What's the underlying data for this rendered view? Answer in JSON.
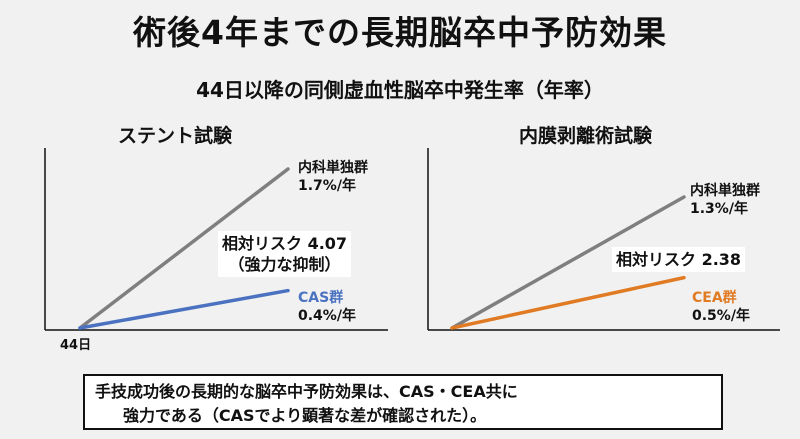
{
  "title": "術後4年までの長期脳卒中予防効果",
  "subtitle": "44日以降の同側虚血性脳卒中発生率（年率）",
  "chart_data": [
    {
      "type": "line",
      "title": "ステント試験",
      "x": [
        "44日"
      ],
      "series": [
        {
          "name": "内科単独群",
          "value": 1.7,
          "label": "1.7%/年",
          "color": "#7f7f7f"
        },
        {
          "name": "CAS群",
          "value": 0.4,
          "label": "0.4%/年",
          "color": "#4a72c0"
        }
      ],
      "annotation": [
        "相対リスク 4.07",
        "（強力な抑制）"
      ]
    },
    {
      "type": "line",
      "title": "内膜剥離術試験",
      "series": [
        {
          "name": "内科単独群",
          "value": 1.3,
          "label": "1.3%/年",
          "color": "#7f7f7f"
        },
        {
          "name": "CEA群",
          "value": 0.5,
          "label": "0.5%/年",
          "color": "#e07b24"
        }
      ],
      "annotation": [
        "相対リスク 2.38"
      ]
    }
  ],
  "conclusion": {
    "line1": "手技成功後の長期的な脳卒中予防効果は、CAS・CEA共に",
    "line2": "強力である（CASでより顕著な差が確認された）。"
  },
  "x_axis_label": "44日"
}
